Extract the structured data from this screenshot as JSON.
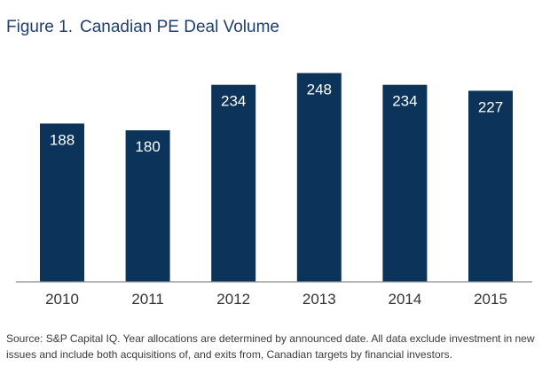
{
  "figure": {
    "label": "Figure 1.",
    "title": "Canadian PE Deal Volume"
  },
  "chart_data": {
    "type": "bar",
    "title": "Canadian PE Deal Volume",
    "categories": [
      "2010",
      "2011",
      "2012",
      "2013",
      "2014",
      "2015"
    ],
    "values": [
      188,
      180,
      234,
      248,
      234,
      227
    ],
    "xlabel": "",
    "ylabel": "",
    "ylim": [
      0,
      250
    ],
    "grid": false,
    "legend": "none",
    "bar_color": "#0c335a",
    "label_color": "#ffffff"
  },
  "source_note": "Source: S&P Capital IQ. Year allocations are determined by announced date. All data exclude investment in new issues and include both acquisitions of, and exits from, Canadian targets by financial investors."
}
